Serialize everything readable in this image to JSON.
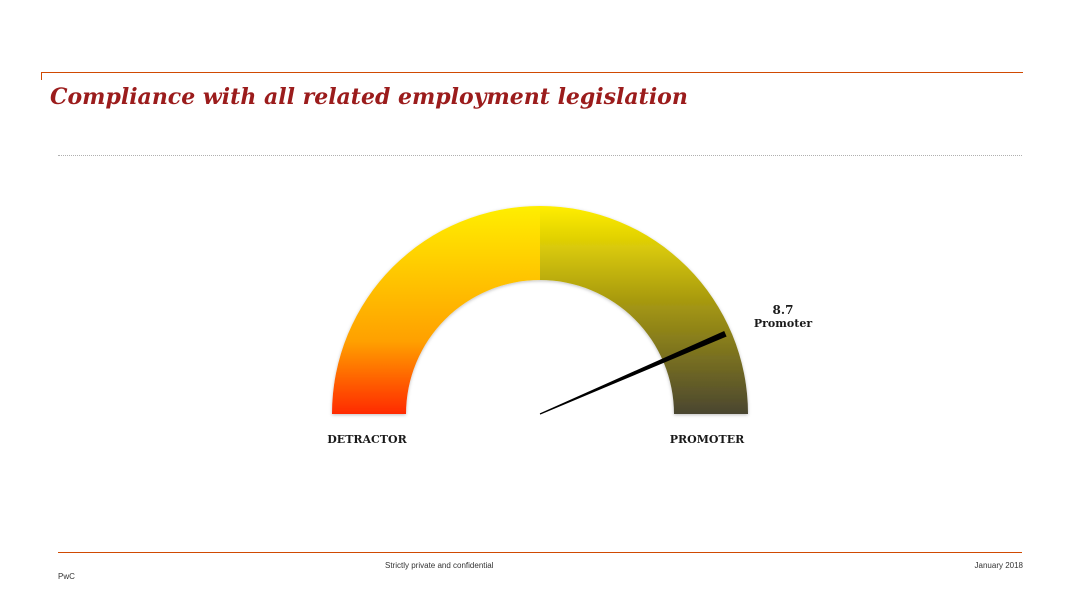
{
  "slide": {
    "title": "Compliance with all related employment legislation"
  },
  "chart_data": {
    "type": "gauge",
    "value": 8.7,
    "range": [
      0,
      10
    ],
    "value_label": "8.7",
    "category_label": "Promoter",
    "left_label": "DETRACTOR",
    "right_label": "PROMOTER",
    "colors": [
      "#ff2a00",
      "#ffa000",
      "#ffee00",
      "#e6d400",
      "#a89a10",
      "#4a4630"
    ]
  },
  "footer": {
    "confidentiality": "Strictly private and confidential",
    "date": "January 2018",
    "brand": "PwC"
  },
  "theme": {
    "accent": "#d04a02",
    "title_color": "#9b1c1c"
  }
}
